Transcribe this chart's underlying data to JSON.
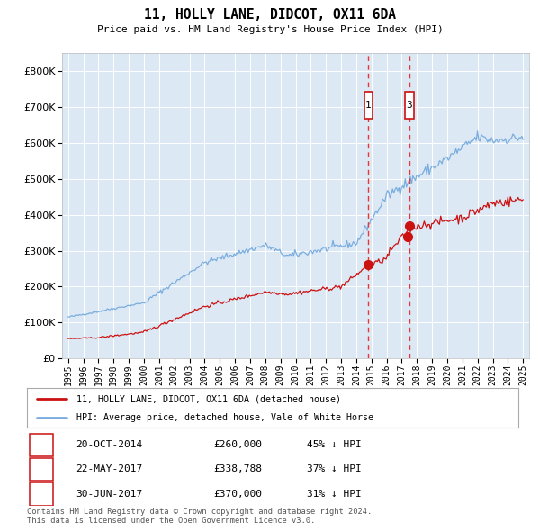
{
  "title": "11, HOLLY LANE, DIDCOT, OX11 6DA",
  "subtitle": "Price paid vs. HM Land Registry's House Price Index (HPI)",
  "background_color": "#ffffff",
  "plot_bg_color": "#dce9f5",
  "hpi_color": "#7aadde",
  "price_color": "#cc1111",
  "grid_color": "#ffffff",
  "ylim": [
    0,
    850000
  ],
  "yticks": [
    0,
    100000,
    200000,
    300000,
    400000,
    500000,
    600000,
    700000,
    800000
  ],
  "vline_date_1": 2014.8,
  "vline_date_3": 2017.5,
  "legend_label_red": "11, HOLLY LANE, DIDCOT, OX11 6DA (detached house)",
  "legend_label_blue": "HPI: Average price, detached house, Vale of White Horse",
  "footer_text": "Contains HM Land Registry data © Crown copyright and database right 2024.\nThis data is licensed under the Open Government Licence v3.0.",
  "table_rows": [
    [
      "1",
      "20-OCT-2014",
      "£260,000",
      "45% ↓ HPI"
    ],
    [
      "2",
      "22-MAY-2017",
      "£338,788",
      "37% ↓ HPI"
    ],
    [
      "3",
      "30-JUN-2017",
      "£370,000",
      "31% ↓ HPI"
    ]
  ],
  "trans_times": [
    2014.8,
    2017.38,
    2017.5
  ],
  "transaction_prices": [
    260000,
    338788,
    370000
  ]
}
